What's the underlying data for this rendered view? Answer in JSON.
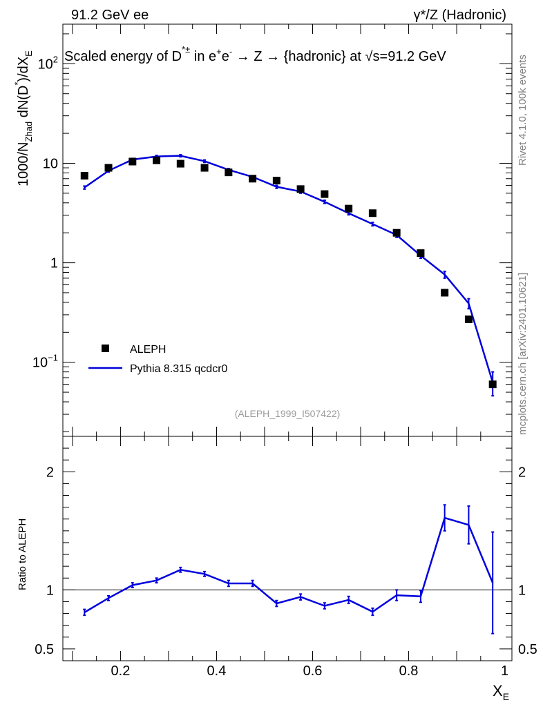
{
  "header": {
    "left": "91.2 GeV ee",
    "right": "γ*/Z (Hadronic)"
  },
  "side_labels": {
    "rivet": "Rivet 4.1.0,  100k events",
    "mcplots": "mcplots.cern.ch [arXiv:2401.10621]"
  },
  "chart_data": [
    {
      "type": "scatter+line",
      "panel": "main",
      "title_parts": {
        "a": "Scaled energy of D",
        "sup": "*±",
        "b": " in e",
        "sup2": "+",
        "c": "e",
        "sup3": "-",
        "arrow1": " → ",
        "d": "Z",
        "arrow2": " → ",
        "e": "{hadronic} at ",
        "sqrt": "√",
        "f": "s=91.2 GeV"
      },
      "ylabel_parts": {
        "a": "1000/N",
        "sub": "Zhad",
        "b": " dN(D",
        "sup": "*",
        "c": ")/dX",
        "sub2": "E"
      },
      "yscale": "log",
      "ylim": [
        0.018,
        250
      ],
      "xlim": [
        0.08,
        1.015
      ],
      "ytick_labels": [
        {
          "value": 100,
          "base": "10",
          "exp": "2"
        },
        {
          "value": 10,
          "label": "10"
        },
        {
          "value": 1,
          "label": "1"
        },
        {
          "value": 0.1,
          "base": "10",
          "exp": "−1"
        }
      ],
      "analysis_tag": "(ALEPH_1999_I507422)",
      "legend": {
        "placement": "bottom-left",
        "entries": [
          "ALEPH",
          "Pythia 8.315 qcdcr0"
        ]
      },
      "series": [
        {
          "name": "ALEPH",
          "style": "black-square-markers",
          "x": [
            0.125,
            0.175,
            0.225,
            0.275,
            0.325,
            0.375,
            0.425,
            0.475,
            0.525,
            0.575,
            0.625,
            0.675,
            0.725,
            0.775,
            0.825,
            0.875,
            0.925,
            0.975
          ],
          "y": [
            7.5,
            9.0,
            10.4,
            10.7,
            9.9,
            9.0,
            8.1,
            7.0,
            6.7,
            5.5,
            4.9,
            3.5,
            3.15,
            2.0,
            1.25,
            0.5,
            0.27,
            0.06
          ]
        },
        {
          "name": "Pythia 8.315 qcdcr0",
          "style": "blue-line",
          "color": "#0000dd",
          "x": [
            0.125,
            0.175,
            0.225,
            0.275,
            0.325,
            0.375,
            0.425,
            0.475,
            0.525,
            0.575,
            0.625,
            0.675,
            0.725,
            0.775,
            0.825,
            0.875,
            0.925,
            0.975
          ],
          "y": [
            5.7,
            8.4,
            10.9,
            11.7,
            11.9,
            10.5,
            8.6,
            7.3,
            5.8,
            5.2,
            4.1,
            3.15,
            2.45,
            1.9,
            1.18,
            0.76,
            0.39,
            0.063
          ],
          "err": [
            0.2,
            0.25,
            0.3,
            0.3,
            0.3,
            0.3,
            0.25,
            0.2,
            0.2,
            0.2,
            0.15,
            0.12,
            0.1,
            0.1,
            0.07,
            0.06,
            0.045,
            0.017
          ]
        }
      ]
    },
    {
      "type": "line",
      "panel": "ratio",
      "ylabel": "Ratio to ALEPH",
      "xlabel": "X",
      "xlabel_sub": "E",
      "ylim": [
        0.4,
        2.3
      ],
      "xlim": [
        0.08,
        1.015
      ],
      "yticks_left": [
        {
          "value": 0.5,
          "label": "0.5"
        },
        {
          "value": 1,
          "label": "1"
        },
        {
          "value": 2,
          "label": "2"
        }
      ],
      "yticks_right": [
        {
          "value": 0.5,
          "label": "0.5"
        },
        {
          "value": 1,
          "label": "1"
        },
        {
          "value": 2,
          "label": "2"
        }
      ],
      "xticks": [
        {
          "value": 0.2,
          "label": "0.2"
        },
        {
          "value": 0.4,
          "label": "0.4"
        },
        {
          "value": 0.6,
          "label": "0.6"
        },
        {
          "value": 0.8,
          "label": "0.8"
        },
        {
          "value": 1,
          "label": "1"
        }
      ],
      "reference_line": 1,
      "series": [
        {
          "name": "Pythia 8.315 qcdcr0 / ALEPH",
          "color": "#0000dd",
          "x": [
            0.125,
            0.175,
            0.225,
            0.275,
            0.325,
            0.375,
            0.425,
            0.475,
            0.525,
            0.575,
            0.625,
            0.675,
            0.725,
            0.775,
            0.825,
            0.875,
            0.925,
            0.975
          ],
          "y": [
            0.81,
            0.93,
            1.04,
            1.08,
            1.17,
            1.135,
            1.055,
            1.055,
            0.885,
            0.94,
            0.865,
            0.915,
            0.815,
            0.955,
            0.945,
            1.61,
            1.55,
            1.06
          ],
          "err": [
            0.025,
            0.02,
            0.02,
            0.02,
            0.02,
            0.02,
            0.025,
            0.025,
            0.025,
            0.025,
            0.025,
            0.03,
            0.03,
            0.045,
            0.05,
            0.11,
            0.16,
            0.43
          ]
        }
      ]
    }
  ]
}
